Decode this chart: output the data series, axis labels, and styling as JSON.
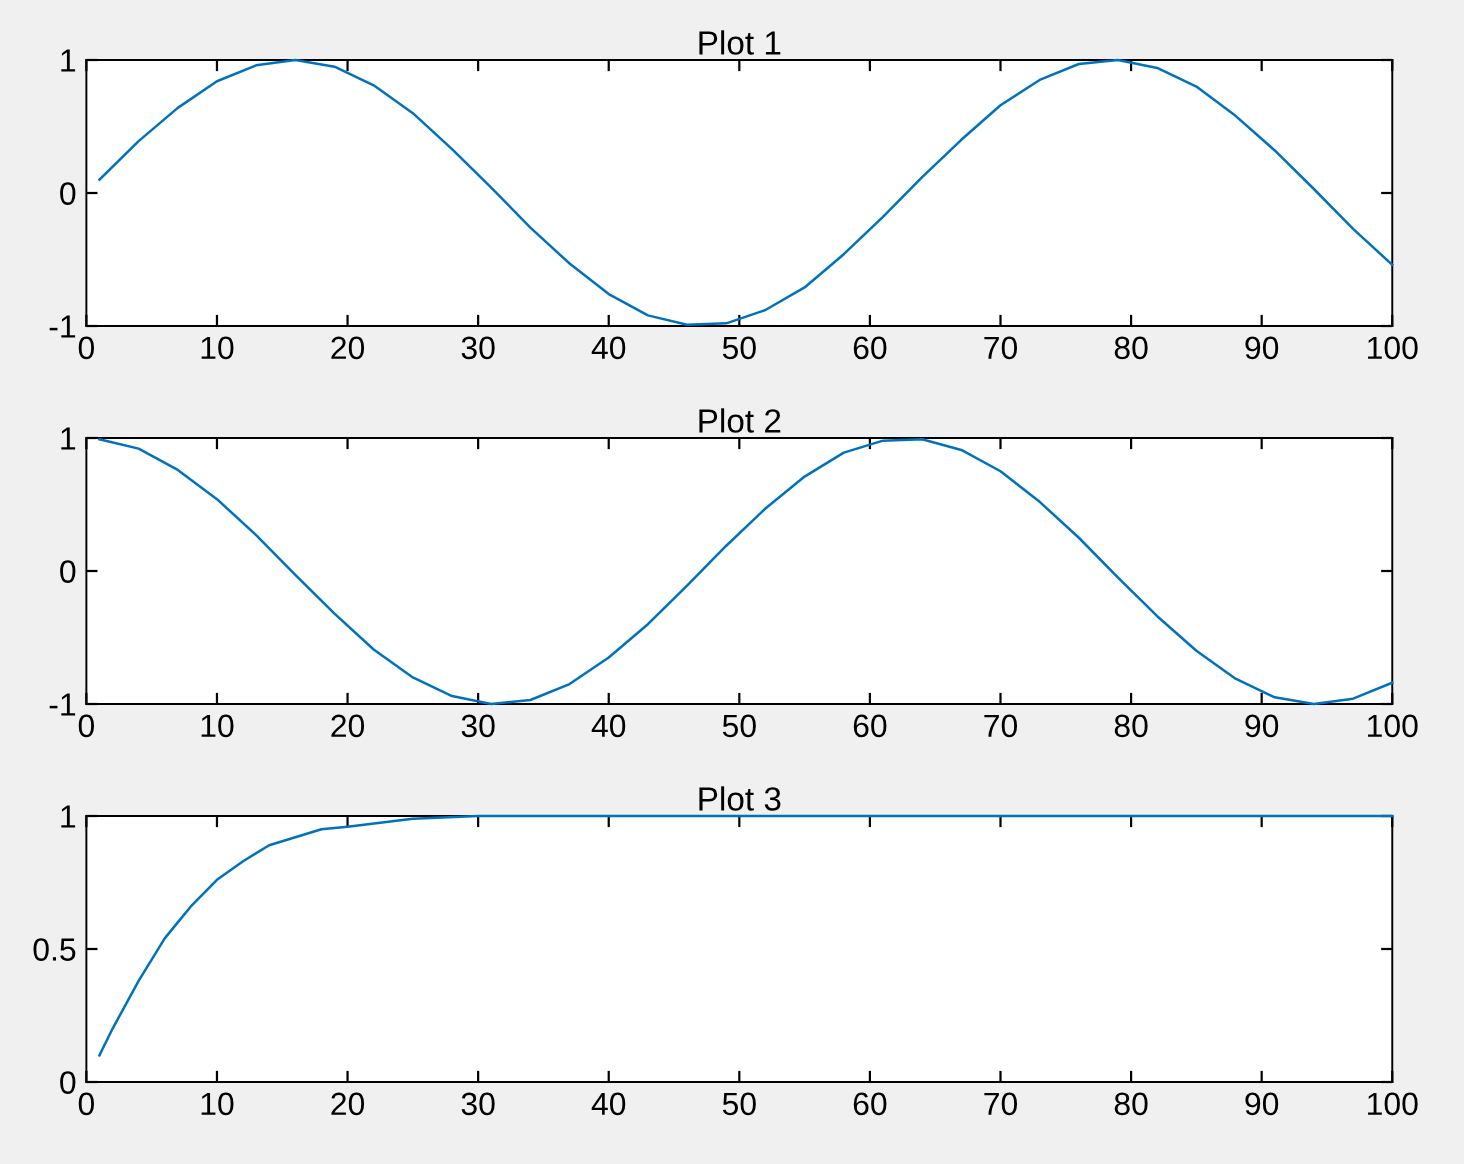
{
  "chart_data": [
    {
      "type": "line",
      "title": "Plot 1",
      "x": [
        1,
        4,
        7,
        10,
        13,
        16,
        19,
        22,
        25,
        28,
        31,
        34,
        37,
        40,
        43,
        46,
        49,
        52,
        55,
        58,
        61,
        64,
        67,
        70,
        73,
        76,
        79,
        82,
        85,
        88,
        91,
        94,
        97,
        100
      ],
      "series": [
        {
          "color": "#0072bd",
          "values": [
            0.1,
            0.39,
            0.64,
            0.84,
            0.96,
            1.0,
            0.95,
            0.81,
            0.6,
            0.33,
            0.04,
            -0.26,
            -0.53,
            -0.76,
            -0.92,
            -0.99,
            -0.98,
            -0.88,
            -0.71,
            -0.46,
            -0.18,
            0.12,
            0.4,
            0.66,
            0.85,
            0.97,
            1.0,
            0.94,
            0.8,
            0.58,
            0.32,
            0.03,
            -0.27,
            -0.54
          ]
        }
      ],
      "xlim": [
        0,
        100
      ],
      "ylim": [
        -1,
        1
      ],
      "xticks": [
        0,
        10,
        20,
        30,
        40,
        50,
        60,
        70,
        80,
        90,
        100
      ],
      "yticks": [
        -1,
        0,
        1
      ]
    },
    {
      "type": "line",
      "title": "Plot 2",
      "x": [
        1,
        4,
        7,
        10,
        13,
        16,
        19,
        22,
        25,
        28,
        31,
        34,
        37,
        40,
        43,
        46,
        49,
        52,
        55,
        58,
        61,
        64,
        67,
        70,
        73,
        76,
        79,
        82,
        85,
        88,
        91,
        94,
        97,
        100
      ],
      "series": [
        {
          "color": "#0072bd",
          "values": [
            0.99,
            0.92,
            0.76,
            0.54,
            0.27,
            -0.03,
            -0.32,
            -0.59,
            -0.8,
            -0.94,
            -1.0,
            -0.97,
            -0.85,
            -0.65,
            -0.4,
            -0.11,
            0.19,
            0.47,
            0.71,
            0.89,
            0.98,
            0.99,
            0.91,
            0.75,
            0.52,
            0.25,
            -0.05,
            -0.34,
            -0.6,
            -0.81,
            -0.95,
            -1.0,
            -0.96,
            -0.84
          ]
        }
      ],
      "xlim": [
        0,
        100
      ],
      "ylim": [
        -1,
        1
      ],
      "xticks": [
        0,
        10,
        20,
        30,
        40,
        50,
        60,
        70,
        80,
        90,
        100
      ],
      "yticks": [
        -1,
        0,
        1
      ]
    },
    {
      "type": "line",
      "title": "Plot 3",
      "x": [
        1,
        2,
        3,
        4,
        5,
        6,
        7,
        8,
        10,
        12,
        14,
        16,
        18,
        20,
        25,
        30,
        40,
        50,
        60,
        70,
        80,
        90,
        100
      ],
      "series": [
        {
          "color": "#0072bd",
          "values": [
            0.1,
            0.2,
            0.29,
            0.38,
            0.46,
            0.54,
            0.6,
            0.66,
            0.76,
            0.83,
            0.89,
            0.92,
            0.95,
            0.96,
            0.99,
            1.0,
            1.0,
            1.0,
            1.0,
            1.0,
            1.0,
            1.0,
            1.0
          ]
        }
      ],
      "xlim": [
        0,
        100
      ],
      "ylim": [
        0,
        1
      ],
      "xticks": [
        0,
        10,
        20,
        30,
        40,
        50,
        60,
        70,
        80,
        90,
        100
      ],
      "yticks": [
        0,
        0.5,
        1
      ]
    }
  ]
}
